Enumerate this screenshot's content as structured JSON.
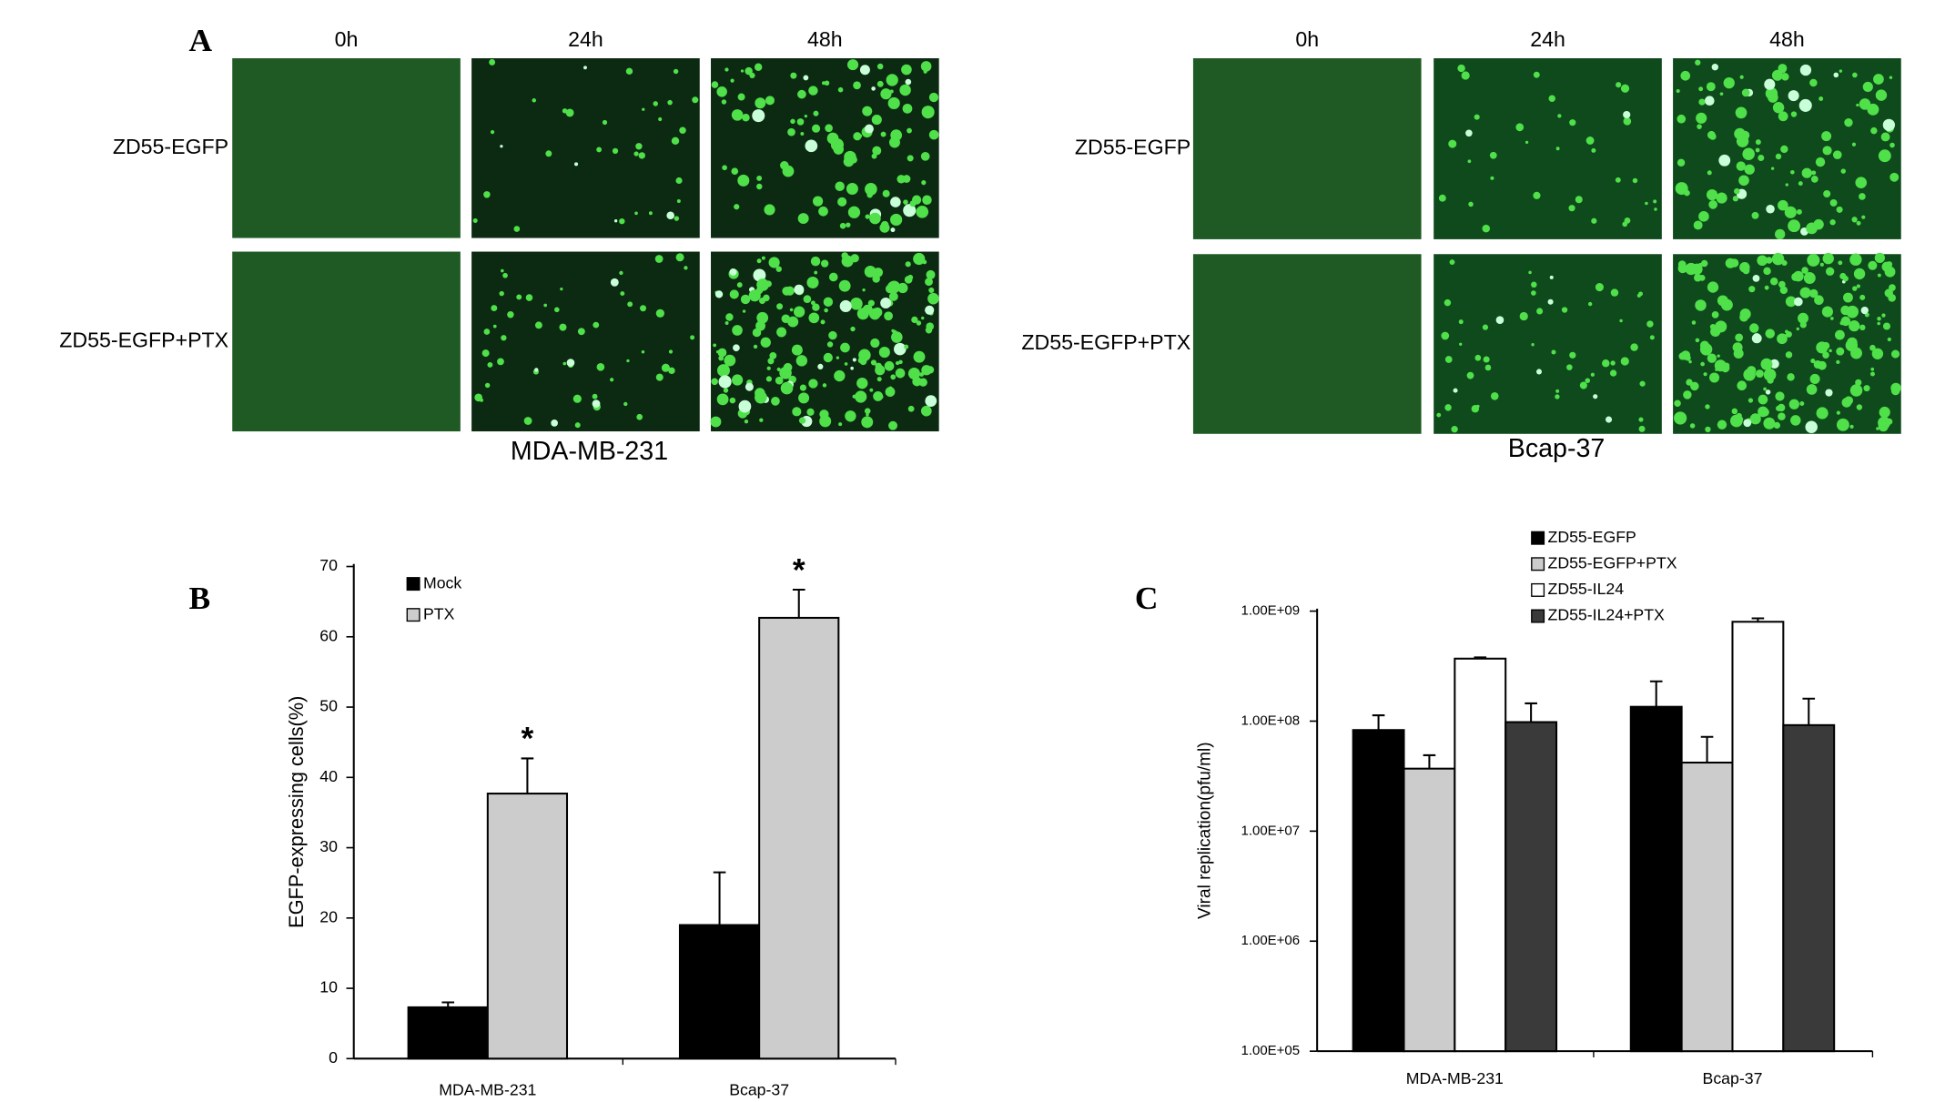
{
  "panel_labels": [
    "A",
    "B",
    "C"
  ],
  "panel_a": [
    {
      "cell_line": "MDA-MB-231",
      "columns": [
        "0h",
        "24h",
        "48h"
      ],
      "rows": [
        "ZD55-EGFP",
        "ZD55-EGFP+PTX"
      ]
    },
    {
      "cell_line": "Bcap-37",
      "columns": [
        "0h",
        "24h",
        "48h"
      ],
      "rows": [
        "ZD55-EGFP",
        "ZD55-EGFP+PTX"
      ]
    }
  ],
  "chart_data": [
    {
      "type": "bar",
      "y_label": "EGFP-expressing cells(%)",
      "categories": [
        "MDA-MB-231",
        "Bcap-37"
      ],
      "series": [
        {
          "name": "Mock",
          "color": "#000000",
          "values": [
            7.3,
            19
          ],
          "errors": [
            0.7,
            7.5
          ]
        },
        {
          "name": "PTX",
          "color": "#cccccc",
          "values": [
            37.7,
            62.7
          ],
          "errors": [
            5,
            4
          ]
        }
      ],
      "annotations": [
        {
          "text": "*",
          "category": "MDA-MB-231",
          "series": "PTX"
        },
        {
          "text": "*",
          "category": "Bcap-37",
          "series": "PTX"
        }
      ],
      "ylim": [
        0,
        70
      ],
      "yticks": [
        0,
        10,
        20,
        30,
        40,
        50,
        60,
        70
      ],
      "legend": "top-left"
    },
    {
      "type": "bar",
      "y_label": "Viral replication(pfu/ml)",
      "log_scale": true,
      "categories": [
        "MDA-MB-231",
        "Bcap-37"
      ],
      "series": [
        {
          "name": "ZD55-EGFP",
          "color": "#000000",
          "values": [
            83000000,
            135000000
          ],
          "errors": [
            30000000,
            95000000
          ]
        },
        {
          "name": "ZD55-EGFP+PTX",
          "color": "#cccccc",
          "values": [
            37000000,
            42000000
          ],
          "errors": [
            12000000,
            30000000
          ]
        },
        {
          "name": "ZD55-IL24",
          "color": "#ffffff",
          "values": [
            370000000,
            800000000
          ],
          "errors": [
            10000000,
            60000000
          ]
        },
        {
          "name": "ZD55-IL24+PTX",
          "color": "#3a3a3a",
          "values": [
            98000000,
            92000000
          ],
          "errors": [
            47000000,
            68000000
          ]
        }
      ],
      "ylim": [
        100000,
        1000000000
      ],
      "yticks": [
        {
          "value": 100000,
          "label": "1.00E+05"
        },
        {
          "value": 1000000,
          "label": "1.00E+06"
        },
        {
          "value": 10000000,
          "label": "1.00E+07"
        },
        {
          "value": 100000000,
          "label": "1.00E+08"
        },
        {
          "value": 1000000000,
          "label": "1.00E+09"
        }
      ],
      "legend": "top"
    }
  ]
}
